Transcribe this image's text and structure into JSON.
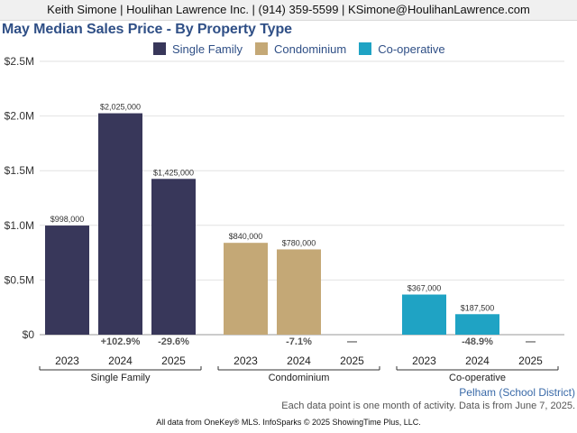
{
  "header": {
    "contact_line": "Keith Simone | Houlihan Lawrence Inc. | (914) 359-5599 | KSimone@HoulihanLawrence.com"
  },
  "chart_data": {
    "type": "bar",
    "title": "May Median Sales Price - By Property Type",
    "ylim": [
      0,
      2500000
    ],
    "y_ticks": [
      {
        "value": 0,
        "label": "$0"
      },
      {
        "value": 500000,
        "label": "$0.5M"
      },
      {
        "value": 1000000,
        "label": "$1.0M"
      },
      {
        "value": 1500000,
        "label": "$1.5M"
      },
      {
        "value": 2000000,
        "label": "$2.0M"
      },
      {
        "value": 2500000,
        "label": "$2.5M"
      }
    ],
    "grid": true,
    "legend_position": "top",
    "categories": [
      "2023",
      "2024",
      "2025"
    ],
    "series": [
      {
        "name": "Single Family",
        "color": "#38375a",
        "values": [
          998000,
          2025000,
          1425000
        ],
        "value_labels": [
          "$998,000",
          "$2,025,000",
          "$1,425,000"
        ],
        "change_labels": [
          "",
          "+102.9%",
          "-29.6%"
        ]
      },
      {
        "name": "Condominium",
        "color": "#c4a876",
        "values": [
          840000,
          780000,
          null
        ],
        "value_labels": [
          "$840,000",
          "$780,000",
          ""
        ],
        "change_labels": [
          "",
          "-7.1%",
          "—"
        ]
      },
      {
        "name": "Co-operative",
        "color": "#1fa3c4",
        "values": [
          367000,
          187500,
          null
        ],
        "value_labels": [
          "$367,000",
          "$187,500",
          ""
        ],
        "change_labels": [
          "",
          "-48.9%",
          "—"
        ]
      }
    ]
  },
  "footer": {
    "area": "Pelham (School District)",
    "note": "Each data point is one month of activity. Data is from June 7, 2025.",
    "credit": "All data from OneKey® MLS. InfoSparks © 2025 ShowingTime Plus, LLC."
  }
}
